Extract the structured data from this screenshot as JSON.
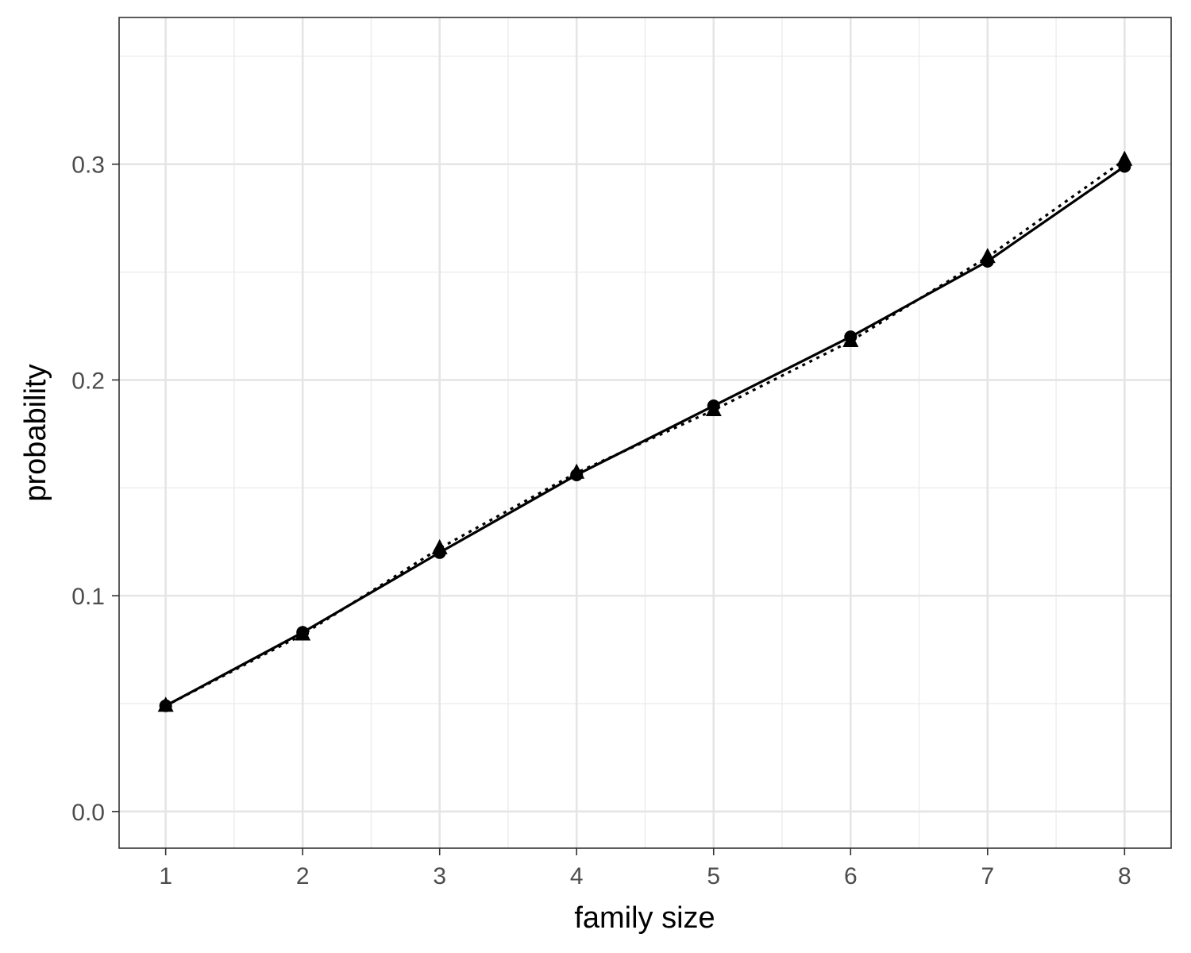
{
  "chart_data": {
    "type": "line",
    "title": "",
    "xlabel": "family size",
    "ylabel": "probability",
    "x": [
      1,
      2,
      3,
      4,
      5,
      6,
      7,
      8
    ],
    "xlim": [
      0.66,
      8.34
    ],
    "ylim": [
      -0.017,
      0.368
    ],
    "x_ticks": [
      1,
      2,
      3,
      4,
      5,
      6,
      7,
      8
    ],
    "y_ticks": [
      0.0,
      0.1,
      0.2,
      0.3
    ],
    "y_tick_labels": [
      "0.0",
      "0.1",
      "0.2",
      "0.3"
    ],
    "y_minor_ticks": [
      0.05,
      0.15,
      0.25,
      0.35
    ],
    "x_minor_ticks": [
      1.5,
      2.5,
      3.5,
      4.5,
      5.5,
      6.5,
      7.5
    ],
    "grid": true,
    "legend": "none",
    "series": [
      {
        "values": [
          0.049,
          0.083,
          0.12,
          0.156,
          0.188,
          0.22,
          0.255,
          0.299
        ],
        "line_style": "solid",
        "marker": "circle",
        "color": "#000000"
      },
      {
        "values": [
          0.049,
          0.082,
          0.122,
          0.157,
          0.186,
          0.218,
          0.257,
          0.302
        ],
        "line_style": "dotted",
        "marker": "triangle",
        "color": "#000000"
      }
    ]
  }
}
